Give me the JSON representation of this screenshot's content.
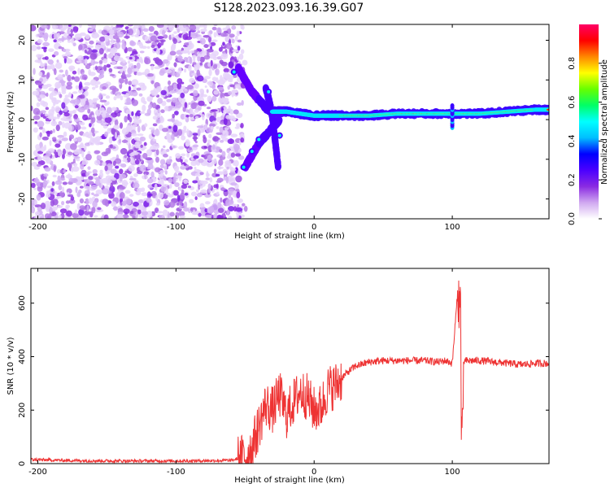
{
  "title": "S128.2023.093.16.39.G07",
  "chart_data": [
    {
      "type": "heatmap",
      "xlabel": "Height of straight line (km)",
      "ylabel": "Frequency (Hz)",
      "xlim": [
        -205,
        170
      ],
      "ylim": [
        -25,
        24
      ],
      "xticks": [
        -200,
        -100,
        0,
        100
      ],
      "yticks": [
        -20,
        -10,
        0,
        10,
        20
      ],
      "colorbar": {
        "label": "Normalized spectral amplitude",
        "range": [
          0.0,
          1.0
        ],
        "ticks": [
          "0.0",
          "0.2",
          "0.4",
          "0.6",
          "0.8"
        ],
        "tick_values": [
          0.0,
          0.2,
          0.4,
          0.6,
          0.8
        ],
        "colors": [
          "#ffffff",
          "#d0a8f0",
          "#8a2be2",
          "#4b00ff",
          "#0000ff",
          "#00bfff",
          "#00ffff",
          "#00ff66",
          "#66ff00",
          "#ffff00",
          "#ff8800",
          "#ff0000",
          "#ff0066"
        ]
      },
      "description_tracks": [
        {
          "x": [
            -55,
            -50,
            -45,
            -40,
            -35,
            -30,
            -25,
            -20,
            -10,
            0,
            10,
            20,
            40,
            60,
            80,
            100,
            120,
            140,
            160,
            170
          ],
          "y": [
            13,
            10,
            7,
            5,
            3,
            2,
            2,
            2,
            1.5,
            1,
            1,
            1,
            1,
            1.5,
            1.5,
            1.5,
            1.5,
            2,
            2.5,
            2.5
          ]
        },
        {
          "x": [
            -50,
            -45,
            -40,
            -35,
            -30,
            -25
          ],
          "y": [
            -12,
            -9,
            -6,
            -4,
            -2,
            0
          ]
        },
        {
          "x": [
            -35,
            -32,
            -30,
            -28,
            -26
          ],
          "y": [
            8,
            4,
            0,
            -6,
            -12
          ]
        }
      ]
    },
    {
      "type": "line",
      "xlabel": "Height of straight line (km)",
      "ylabel": "SNR (10 * v/v)",
      "xlim": [
        -205,
        170
      ],
      "ylim": [
        0,
        730
      ],
      "xticks": [
        -200,
        -100,
        0,
        100
      ],
      "yticks": [
        0,
        200,
        400,
        600
      ],
      "color": "#ee3333",
      "series": [
        {
          "x": [
            -205,
            -180,
            -150,
            -120,
            -90,
            -60,
            -50,
            -45,
            -40,
            -35,
            -30,
            -25,
            -20,
            -15,
            -10,
            -5,
            0,
            5,
            10,
            15,
            20,
            25,
            30,
            40,
            50,
            60,
            70,
            80,
            90,
            95,
            100,
            104,
            106,
            108,
            110,
            120,
            130,
            140,
            150,
            160,
            170
          ],
          "y": [
            15,
            12,
            10,
            10,
            10,
            12,
            25,
            60,
            140,
            220,
            200,
            260,
            180,
            230,
            270,
            250,
            200,
            210,
            280,
            290,
            320,
            345,
            365,
            380,
            385,
            385,
            385,
            385,
            380,
            385,
            375,
            650,
            70,
            380,
            385,
            385,
            380,
            375,
            370,
            375,
            375
          ]
        }
      ]
    }
  ]
}
